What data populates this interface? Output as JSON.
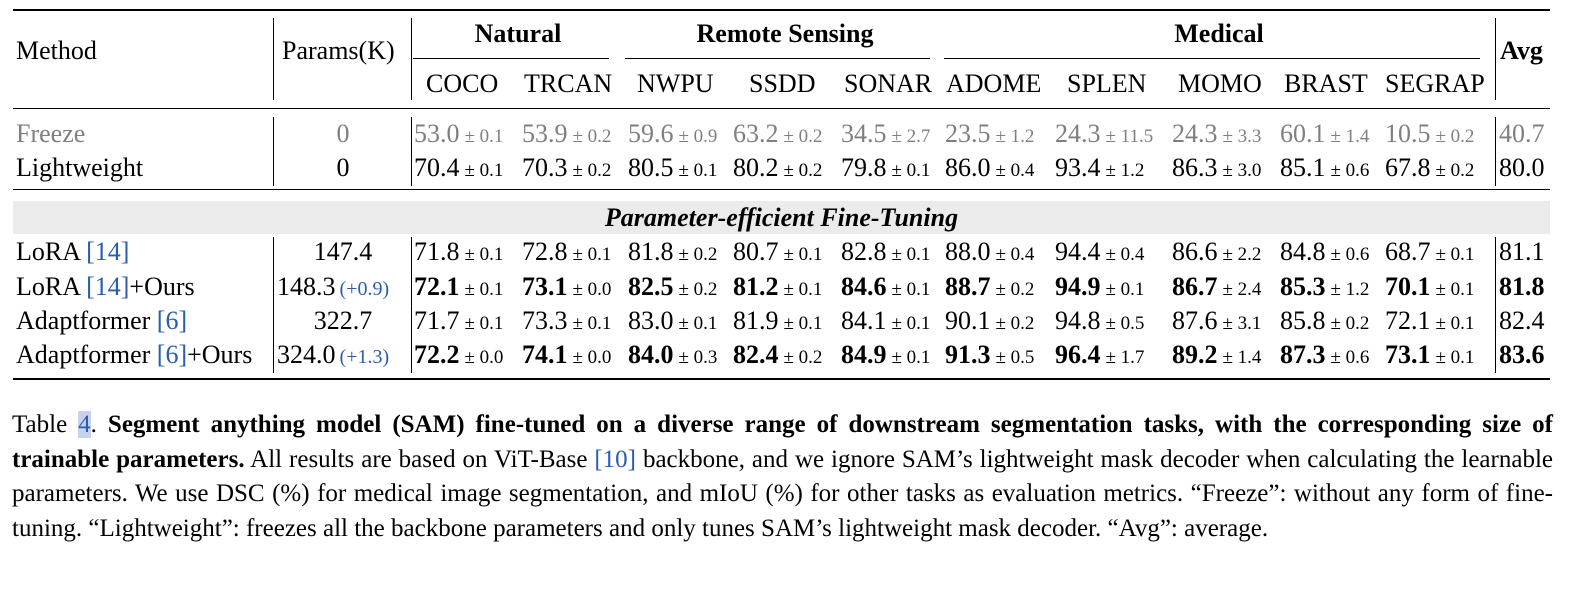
{
  "table": {
    "header": {
      "method": "Method",
      "params": "Params(K)",
      "avg": "Avg",
      "groups": [
        {
          "label": "Natural"
        },
        {
          "label": "Remote Sensing"
        },
        {
          "label": "Medical"
        }
      ],
      "datasets": [
        "COCO",
        "TRCAN",
        "NWPU",
        "SSDD",
        "SONAR",
        "ADOME",
        "SPLEN",
        "MOMO",
        "BRAST",
        "SEGRAP"
      ]
    },
    "section_label": "Parameter-efficient Fine-Tuning",
    "rows": [
      {
        "method": "Freeze",
        "cite": "",
        "suffix": "",
        "params": "0",
        "delta": "",
        "muted": true,
        "cells": [
          {
            "v": "53.0",
            "pm": "± 0.1"
          },
          {
            "v": "53.9",
            "pm": "± 0.2"
          },
          {
            "v": "59.6",
            "pm": "± 0.9"
          },
          {
            "v": "63.2",
            "pm": "± 0.2"
          },
          {
            "v": "34.5",
            "pm": "± 2.7"
          },
          {
            "v": "23.5",
            "pm": "± 1.2"
          },
          {
            "v": "24.3",
            "pm": "± 11.5"
          },
          {
            "v": "24.3",
            "pm": "± 3.3"
          },
          {
            "v": "60.1",
            "pm": "± 1.4"
          },
          {
            "v": "10.5",
            "pm": "± 0.2"
          }
        ],
        "avg": "40.7",
        "bold": false
      },
      {
        "method": "Lightweight",
        "cite": "",
        "suffix": "",
        "params": "0",
        "delta": "",
        "muted": false,
        "cells": [
          {
            "v": "70.4",
            "pm": "± 0.1"
          },
          {
            "v": "70.3",
            "pm": "± 0.2"
          },
          {
            "v": "80.5",
            "pm": "± 0.1"
          },
          {
            "v": "80.2",
            "pm": "± 0.2"
          },
          {
            "v": "79.8",
            "pm": "± 0.1"
          },
          {
            "v": "86.0",
            "pm": "± 0.4"
          },
          {
            "v": "93.4",
            "pm": "± 1.2"
          },
          {
            "v": "86.3",
            "pm": "± 3.0"
          },
          {
            "v": "85.1",
            "pm": "± 0.6"
          },
          {
            "v": "67.8",
            "pm": "± 0.2"
          }
        ],
        "avg": "80.0",
        "bold": false
      },
      {
        "method": "LoRA ",
        "cite": "[14]",
        "suffix": "",
        "params": "147.4",
        "delta": "",
        "muted": false,
        "cells": [
          {
            "v": "71.8",
            "pm": "± 0.1"
          },
          {
            "v": "72.8",
            "pm": "± 0.1"
          },
          {
            "v": "81.8",
            "pm": "± 0.2"
          },
          {
            "v": "80.7",
            "pm": "± 0.1"
          },
          {
            "v": "82.8",
            "pm": "± 0.1"
          },
          {
            "v": "88.0",
            "pm": "± 0.4"
          },
          {
            "v": "94.4",
            "pm": "± 0.4"
          },
          {
            "v": "86.6",
            "pm": "± 2.2"
          },
          {
            "v": "84.8",
            "pm": "± 0.6"
          },
          {
            "v": "68.7",
            "pm": "± 0.1"
          }
        ],
        "avg": "81.1",
        "bold": false
      },
      {
        "method": "LoRA ",
        "cite": "[14]",
        "suffix": "+Ours",
        "params": "148.3",
        "delta": "(+0.9)",
        "muted": false,
        "cells": [
          {
            "v": "72.1",
            "pm": "± 0.1"
          },
          {
            "v": "73.1",
            "pm": "± 0.0"
          },
          {
            "v": "82.5",
            "pm": "± 0.2"
          },
          {
            "v": "81.2",
            "pm": "± 0.1"
          },
          {
            "v": "84.6",
            "pm": "± 0.1"
          },
          {
            "v": "88.7",
            "pm": "± 0.2"
          },
          {
            "v": "94.9",
            "pm": "± 0.1"
          },
          {
            "v": "86.7",
            "pm": "± 2.4"
          },
          {
            "v": "85.3",
            "pm": "± 1.2"
          },
          {
            "v": "70.1",
            "pm": "± 0.1"
          }
        ],
        "avg": "81.8",
        "bold": true
      },
      {
        "method": "Adaptformer ",
        "cite": "[6]",
        "suffix": "",
        "params": "322.7",
        "delta": "",
        "muted": false,
        "cells": [
          {
            "v": "71.7",
            "pm": "± 0.1"
          },
          {
            "v": "73.3",
            "pm": "± 0.1"
          },
          {
            "v": "83.0",
            "pm": "± 0.1"
          },
          {
            "v": "81.9",
            "pm": "± 0.1"
          },
          {
            "v": "84.1",
            "pm": "± 0.1"
          },
          {
            "v": "90.1",
            "pm": "± 0.2"
          },
          {
            "v": "94.8",
            "pm": "± 0.5"
          },
          {
            "v": "87.6",
            "pm": "± 3.1"
          },
          {
            "v": "85.8",
            "pm": "± 0.2"
          },
          {
            "v": "72.1",
            "pm": "± 0.1"
          }
        ],
        "avg": "82.4",
        "bold": false
      },
      {
        "method": "Adaptformer ",
        "cite": "[6]",
        "suffix": "+Ours",
        "params": "324.0",
        "delta": "(+1.3)",
        "muted": false,
        "cells": [
          {
            "v": "72.2",
            "pm": "± 0.0"
          },
          {
            "v": "74.1",
            "pm": "± 0.0"
          },
          {
            "v": "84.0",
            "pm": "± 0.3"
          },
          {
            "v": "82.4",
            "pm": "± 0.2"
          },
          {
            "v": "84.9",
            "pm": "± 0.1"
          },
          {
            "v": "91.3",
            "pm": "± 0.5"
          },
          {
            "v": "96.4",
            "pm": "± 1.7"
          },
          {
            "v": "89.2",
            "pm": "± 1.4"
          },
          {
            "v": "87.3",
            "pm": "± 0.6"
          },
          {
            "v": "73.1",
            "pm": "± 0.1"
          }
        ],
        "avg": "83.6",
        "bold": true
      }
    ]
  },
  "caption": {
    "prefix": "Table ",
    "number": "4",
    "dot": ". ",
    "bold": "Segment anything model (SAM) fine-tuned on a diverse range of downstream segmentation tasks, with the corresponding size of trainable parameters.",
    "text1": " All results are based on ViT-Base ",
    "cite": "[10]",
    "text2": " backbone, and we ignore SAM’s lightweight mask decoder when calculating the learnable parameters. We use DSC (%) for medical image segmentation, and mIoU (%) for other tasks as evaluation metrics. “Freeze”: without any form of fine-tuning. “Lightweight”: freezes all the backbone parameters and only tunes SAM’s lightweight mask decoder. “Avg”: average."
  }
}
